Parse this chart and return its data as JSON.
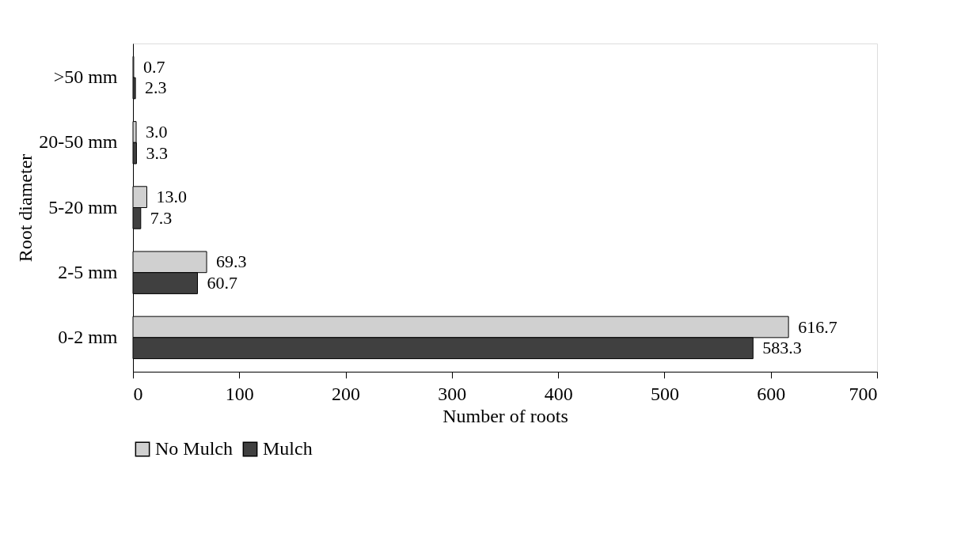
{
  "chart_data": {
    "type": "bar",
    "orientation": "horizontal",
    "xlabel": "Number of roots",
    "ylabel": "Root diameter",
    "categories": [
      ">50 mm",
      "20-50 mm",
      "5-20 mm",
      "2-5 mm",
      "0-2 mm"
    ],
    "series": [
      {
        "name": "No Mulch",
        "color": "#d0d0d0",
        "values": [
          0.7,
          3.0,
          13.0,
          69.3,
          616.7
        ],
        "value_labels": [
          "0.7",
          "3.0",
          "13.0",
          "69.3",
          "616.7"
        ]
      },
      {
        "name": "Mulch",
        "color": "#404040",
        "values": [
          2.3,
          3.3,
          7.3,
          60.7,
          583.3
        ],
        "value_labels": [
          "2.3",
          "3.3",
          "7.3",
          "60.7",
          "583.3"
        ]
      }
    ],
    "xlim": [
      0,
      700
    ],
    "xticks": [
      0,
      100,
      200,
      300,
      400,
      500,
      600,
      700
    ],
    "grid": false,
    "legend": "bottom"
  }
}
